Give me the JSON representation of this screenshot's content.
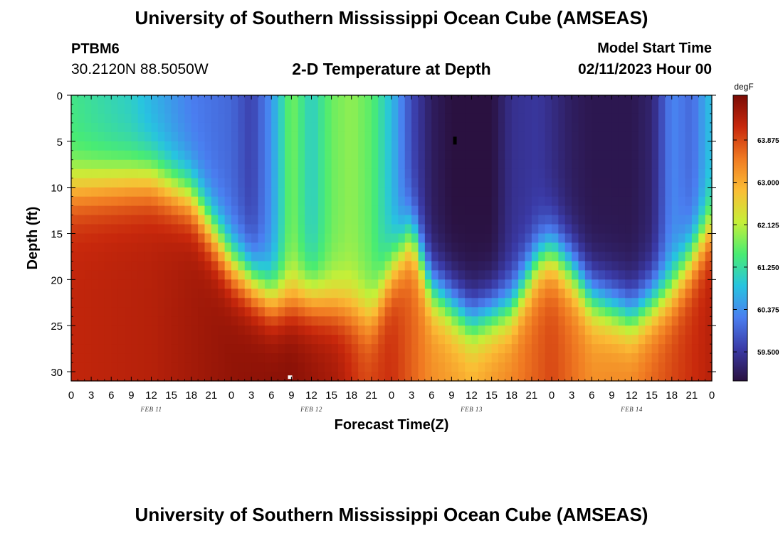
{
  "header": {
    "title": "University of Southern Mississippi Ocean Cube (AMSEAS)",
    "station_id": "PTBM6",
    "station_coords": "30.2120N  88.5050W",
    "chart_title": "2-D Temperature at Depth",
    "model_start_label": "Model Start Time",
    "model_start_value": "02/11/2023 Hour 00"
  },
  "footer": {
    "title": "University of Southern Mississippi Ocean Cube (AMSEAS)"
  },
  "chart_data": {
    "type": "heatmap",
    "title": "2-D Temperature at Depth",
    "xlabel": "Forecast Time(Z)",
    "ylabel": "Depth (ft)",
    "x_range_hours": [
      0,
      96
    ],
    "x_tick_labels": [
      "0",
      "3",
      "6",
      "9",
      "12",
      "15",
      "18",
      "21",
      "0",
      "3",
      "6",
      "9",
      "12",
      "15",
      "18",
      "21",
      "0",
      "3",
      "6",
      "9",
      "12",
      "15",
      "18",
      "21",
      "0",
      "3",
      "6",
      "9",
      "12",
      "15",
      "18",
      "21",
      "0"
    ],
    "date_labels": [
      {
        "label": "FEB 11",
        "hour": 12
      },
      {
        "label": "FEB 12",
        "hour": 36
      },
      {
        "label": "FEB 13",
        "hour": 60
      },
      {
        "label": "FEB 14",
        "hour": 84
      }
    ],
    "y_range": [
      0,
      31
    ],
    "y_ticks": [
      0,
      5,
      10,
      15,
      20,
      25,
      30
    ],
    "colorbar": {
      "unit": "degF",
      "min": 58.9,
      "max": 64.8,
      "tick_values": [
        59.5,
        60.375,
        61.25,
        62.125,
        63.0,
        63.875
      ],
      "tick_labels": [
        "59.500",
        "60.375",
        "61.250",
        "62.125",
        "63.000",
        "63.875"
      ],
      "stops": [
        "#2a1140",
        "#3a3aa6",
        "#4a7ef0",
        "#27c4e0",
        "#49ec72",
        "#c6ef38",
        "#fbbd35",
        "#f07a22",
        "#c8280c",
        "#7a0b05"
      ]
    },
    "surface_temps": [
      {
        "hour": 0,
        "value": 61.4
      },
      {
        "hour": 9,
        "value": 61.0
      },
      {
        "hour": 12,
        "value": 60.7
      },
      {
        "hour": 18,
        "value": 60.2
      },
      {
        "hour": 24,
        "value": 60.0
      },
      {
        "hour": 27,
        "value": 59.6
      },
      {
        "hour": 30,
        "value": 60.4
      },
      {
        "hour": 33,
        "value": 61.8
      },
      {
        "hour": 36,
        "value": 61.0
      },
      {
        "hour": 39,
        "value": 61.7
      },
      {
        "hour": 42,
        "value": 61.9
      },
      {
        "hour": 45,
        "value": 61.6
      },
      {
        "hour": 48,
        "value": 60.8
      },
      {
        "hour": 51,
        "value": 59.7
      },
      {
        "hour": 54,
        "value": 59.1
      },
      {
        "hour": 57,
        "value": 58.9
      },
      {
        "hour": 63,
        "value": 58.9
      },
      {
        "hour": 66,
        "value": 59.4
      },
      {
        "hour": 70,
        "value": 59.5
      },
      {
        "hour": 75,
        "value": 59.1
      },
      {
        "hour": 78,
        "value": 59.0
      },
      {
        "hour": 84,
        "value": 59.0
      },
      {
        "hour": 87,
        "value": 59.2
      },
      {
        "hour": 90,
        "value": 60.3
      },
      {
        "hour": 93,
        "value": 60.0
      },
      {
        "hour": 96,
        "value": 60.9
      }
    ],
    "bottom_temps": [
      {
        "hour": 0,
        "value": 64.2
      },
      {
        "hour": 12,
        "value": 64.3
      },
      {
        "hour": 24,
        "value": 64.6
      },
      {
        "hour": 33,
        "value": 64.7
      },
      {
        "hour": 40,
        "value": 64.4
      },
      {
        "hour": 44,
        "value": 63.9
      },
      {
        "hour": 48,
        "value": 64.1
      },
      {
        "hour": 54,
        "value": 63.3
      },
      {
        "hour": 60,
        "value": 63.0
      },
      {
        "hour": 66,
        "value": 63.4
      },
      {
        "hour": 72,
        "value": 63.9
      },
      {
        "hour": 78,
        "value": 63.3
      },
      {
        "hour": 84,
        "value": 63.4
      },
      {
        "hour": 90,
        "value": 63.9
      },
      {
        "hour": 96,
        "value": 64.3
      }
    ],
    "thermocline_depth_ft": [
      {
        "hour": 0,
        "value": 10
      },
      {
        "hour": 12,
        "value": 9
      },
      {
        "hour": 18,
        "value": 11
      },
      {
        "hour": 24,
        "value": 18
      },
      {
        "hour": 30,
        "value": 22
      },
      {
        "hour": 36,
        "value": 22
      },
      {
        "hour": 42,
        "value": 23
      },
      {
        "hour": 45,
        "value": 24
      },
      {
        "hour": 48,
        "value": 19
      },
      {
        "hour": 51,
        "value": 15
      },
      {
        "hour": 54,
        "value": 21
      },
      {
        "hour": 60,
        "value": 24.5
      },
      {
        "hour": 66,
        "value": 23
      },
      {
        "hour": 70,
        "value": 18
      },
      {
        "hour": 72,
        "value": 17
      },
      {
        "hour": 75,
        "value": 19
      },
      {
        "hour": 78,
        "value": 22
      },
      {
        "hour": 84,
        "value": 24
      },
      {
        "hour": 90,
        "value": 21
      },
      {
        "hour": 96,
        "value": 14
      }
    ]
  }
}
